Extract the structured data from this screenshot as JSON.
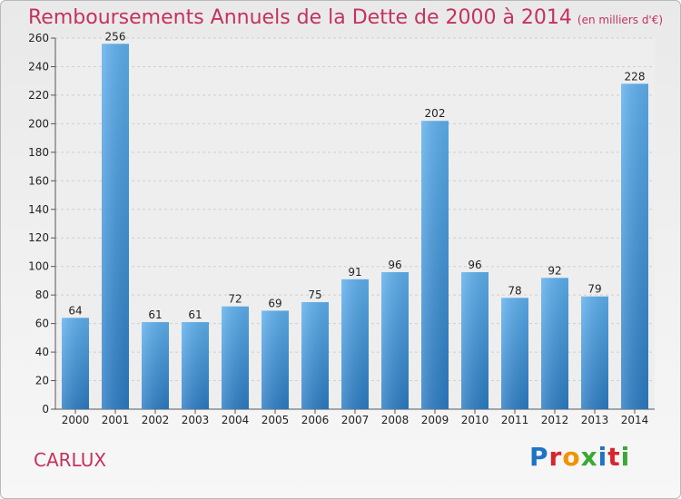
{
  "chart_data": {
    "type": "bar",
    "title": "Remboursements Annuels de la Dette de 2000 à 2014",
    "subtitle": "(en milliers d'€)",
    "categories": [
      "2000",
      "2001",
      "2002",
      "2003",
      "2004",
      "2005",
      "2006",
      "2007",
      "2008",
      "2009",
      "2010",
      "2011",
      "2012",
      "2013",
      "2014"
    ],
    "values": [
      64,
      256,
      61,
      61,
      72,
      69,
      75,
      91,
      96,
      202,
      96,
      78,
      92,
      79,
      228
    ],
    "xlabel": "",
    "ylabel": "",
    "ylim": [
      0,
      260
    ],
    "yticks": [
      0,
      20,
      40,
      60,
      80,
      100,
      120,
      140,
      160,
      180,
      200,
      220,
      240,
      260
    ],
    "grid": true,
    "bar_color": "#4a9be0"
  },
  "footer": {
    "city": "CARLUX",
    "logo_letters": [
      "P",
      "r",
      "o",
      "x",
      "i",
      "t",
      "i"
    ],
    "logo_colors": [
      "#1e73c8",
      "#d8262e",
      "#f39200",
      "#3aa935",
      "#1e73c8",
      "#d8262e",
      "#3aa935"
    ]
  }
}
